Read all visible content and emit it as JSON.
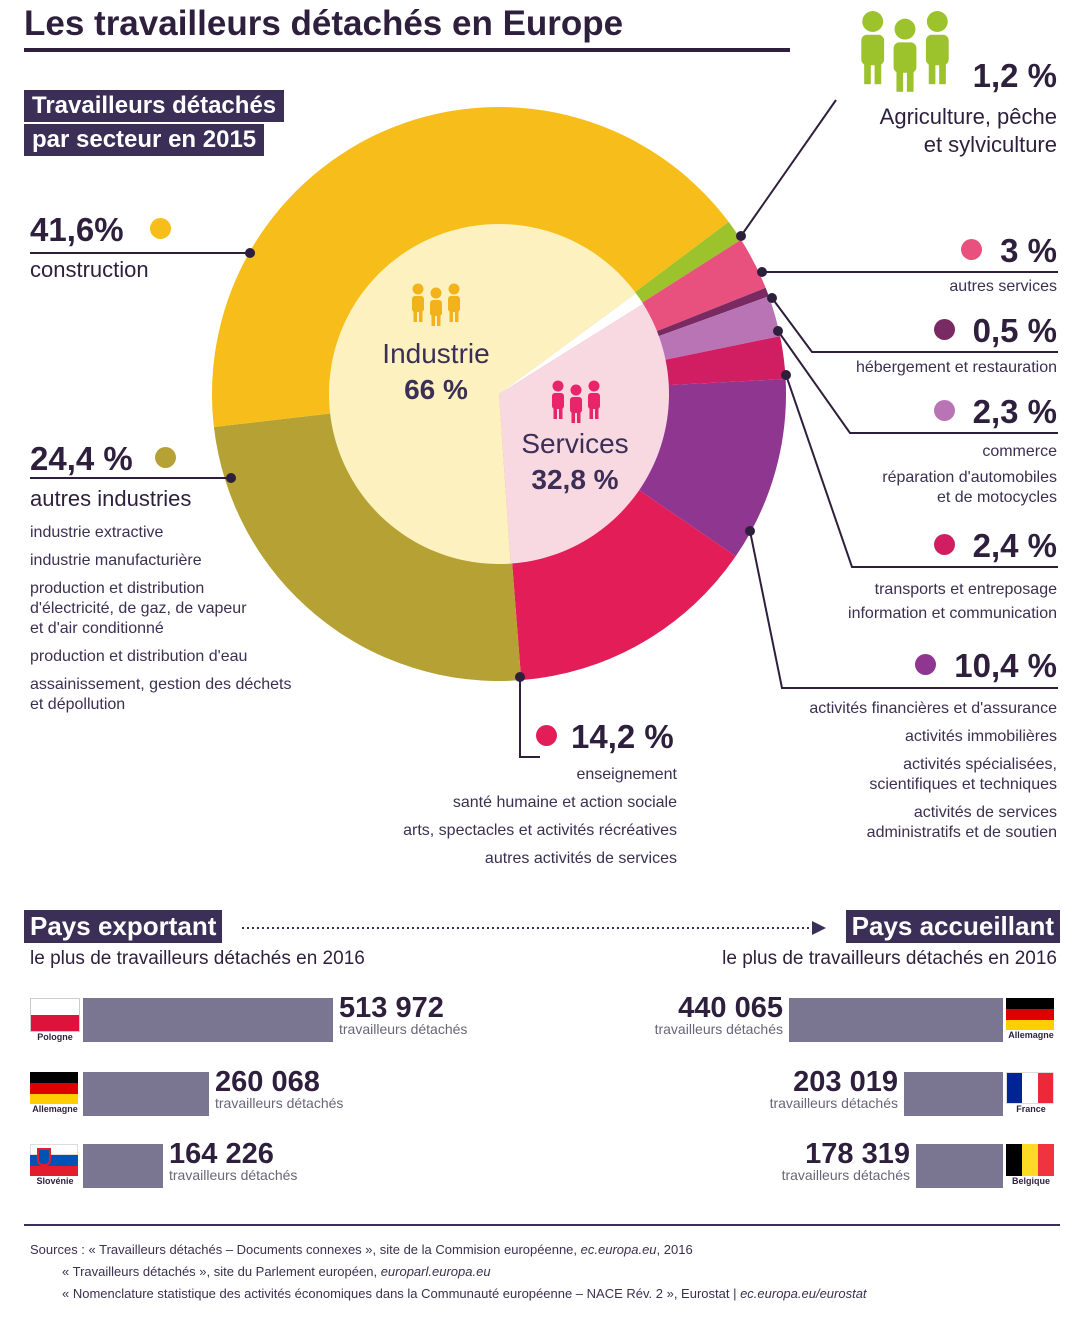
{
  "title": "Les travailleurs détachés en Europe",
  "section_title_line1": "Travailleurs détachés",
  "section_title_line2": "par secteur en 2015",
  "center": {
    "industrie_label": "Industrie",
    "industrie_pct": "66 %",
    "services_label": "Services",
    "services_pct": "32,8 %"
  },
  "colors": {
    "construction": "#f7be1b",
    "autres_industries": "#b6a134",
    "agriculture": "#9cc22c",
    "autres_services": "#e8517e",
    "hebergement": "#7a2a63",
    "commerce": "#b874b4",
    "transports": "#d11e62",
    "financieres": "#8e3690",
    "enseignement": "#e31d58",
    "industrie_inner": "#fdf2bf",
    "services_inner": "#f8d9e1",
    "dark": "#2e1f3d"
  },
  "labels": {
    "construction": {
      "pct": "41,6%",
      "name": "construction"
    },
    "autres_industries": {
      "pct": "24,4 %",
      "name": "autres industries",
      "items": [
        "industrie extractive",
        "industrie manufacturière",
        "production et distribution",
        "d'électricité, de gaz, de vapeur",
        "et d'air conditionné",
        "production et distribution d'eau",
        "assainissement, gestion des déchets",
        "et dépollution"
      ]
    },
    "agriculture": {
      "pct": "1,2 %",
      "line1": "Agriculture, pêche",
      "line2": "et sylviculture"
    },
    "autres_services": {
      "pct": "3 %",
      "name": "autres services"
    },
    "hebergement": {
      "pct": "0,5 %",
      "name": "hébergement et restauration"
    },
    "commerce": {
      "pct": "2,3 %",
      "line1": "commerce",
      "line2": "réparation d'automobiles",
      "line3": "et de motocycles"
    },
    "transports": {
      "pct": "2,4 %",
      "line1": "transports et entreposage",
      "line2": "information et communication"
    },
    "financieres": {
      "pct": "10,4 %",
      "items": [
        "activités financières et d'assurance",
        "activités immobilières",
        "activités spécialisées,",
        "scientifiques et techniques",
        "activités de services",
        "administratifs et de soutien"
      ]
    },
    "enseignement": {
      "pct": "14,2 %",
      "items": [
        "enseignement",
        "santé humaine et action sociale",
        "arts, spectacles et activités récréatives",
        "autres activités de services"
      ]
    }
  },
  "chart_data": [
    {
      "type": "pie",
      "title": "Travailleurs détachés par secteur en 2015",
      "slices": [
        {
          "name": "construction",
          "value": 41.6
        },
        {
          "name": "autres industries",
          "value": 24.4
        },
        {
          "name": "enseignement, santé humaine et action sociale, arts, spectacles et activités récréatives, autres activités de services",
          "value": 14.2
        },
        {
          "name": "activités financières, immobilières, spécialisées, de services administratifs",
          "value": 10.4
        },
        {
          "name": "transports et entreposage, information et communication",
          "value": 2.4
        },
        {
          "name": "commerce, réparation d'automobiles et de motocycles",
          "value": 2.3
        },
        {
          "name": "hébergement et restauration",
          "value": 0.5
        },
        {
          "name": "autres services",
          "value": 3.0
        },
        {
          "name": "Agriculture, pêche et sylviculture",
          "value": 1.2
        }
      ],
      "groups": [
        {
          "name": "Industrie",
          "value": 66
        },
        {
          "name": "Services",
          "value": 32.8
        }
      ]
    },
    {
      "type": "bar",
      "title": "Pays exportant le plus de travailleurs détachés en 2016",
      "categories": [
        "Pologne",
        "Allemagne",
        "Slovénie"
      ],
      "values": [
        513972,
        260068,
        164226
      ]
    },
    {
      "type": "bar",
      "title": "Pays accueillant le plus de travailleurs détachés en 2016",
      "categories": [
        "Allemagne",
        "France",
        "Belgique"
      ],
      "values": [
        440065,
        203019,
        178319
      ]
    }
  ],
  "bottom": {
    "export_title": "Pays exportant",
    "import_title": "Pays accueillant",
    "subtitle": "le plus de travailleurs détachés en 2016",
    "unit": "travailleurs détachés",
    "export": [
      {
        "country": "Pologne",
        "value_text": "513 972"
      },
      {
        "country": "Allemagne",
        "value_text": "260 068"
      },
      {
        "country": "Slovénie",
        "value_text": "164 226"
      }
    ],
    "import": [
      {
        "country": "Allemagne",
        "value_text": "440 065"
      },
      {
        "country": "France",
        "value_text": "203 019"
      },
      {
        "country": "Belgique",
        "value_text": "178 319"
      }
    ]
  },
  "sources": {
    "line1_a": "Sources : « Travailleurs détachés – Documents connexes », site de la Commision européenne, ",
    "line1_i": "ec.europa.eu",
    "line1_b": ", 2016",
    "line2_a": "« Travailleurs détachés », site du Parlement européen, ",
    "line2_i": "europarl.europa.eu",
    "line3_a": "« Nomenclature statistique des activités économiques dans la Communauté européenne – NACE Rév. 2 », Eurostat | ",
    "line3_i": "ec.europa.eu/eurostat"
  }
}
